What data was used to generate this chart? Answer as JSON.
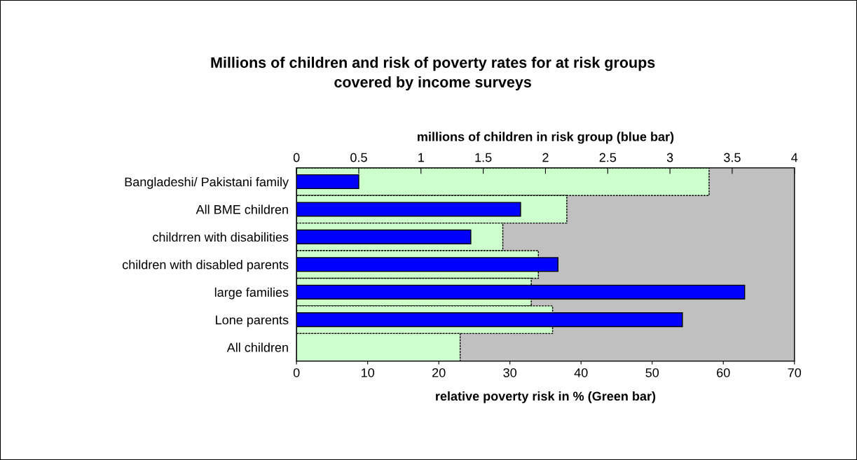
{
  "chart_data": {
    "type": "bar",
    "orientation": "horizontal",
    "title": "Millions of children and risk of poverty rates for at risk groups\ncovered by income surveys",
    "xlabel": "relative poverty risk in % (Green bar)",
    "x2label": "millions of children in risk group (blue bar)",
    "categories": [
      "Bangladeshi/ Pakistani family",
      "All BME children",
      "childrren with disabilities",
      "children with disabled parents",
      "large families",
      "Lone parents",
      "All children"
    ],
    "series": [
      {
        "color": "#ccffcc",
        "values": [
          58,
          38,
          29,
          34,
          33,
          36,
          23
        ]
      },
      {
        "color": "#0000ff",
        "axis": "x2",
        "values": [
          0.5,
          1.8,
          1.4,
          2.1,
          3.6,
          3.1,
          null
        ]
      }
    ],
    "xlim": [
      0,
      70
    ],
    "xticks": [
      0,
      10,
      20,
      30,
      40,
      50,
      60,
      70
    ],
    "x2lim": [
      0,
      4
    ],
    "x2ticks": [
      0,
      0.5,
      1,
      1.5,
      2,
      2.5,
      3,
      3.5,
      4
    ],
    "grid": false,
    "legend": false
  }
}
